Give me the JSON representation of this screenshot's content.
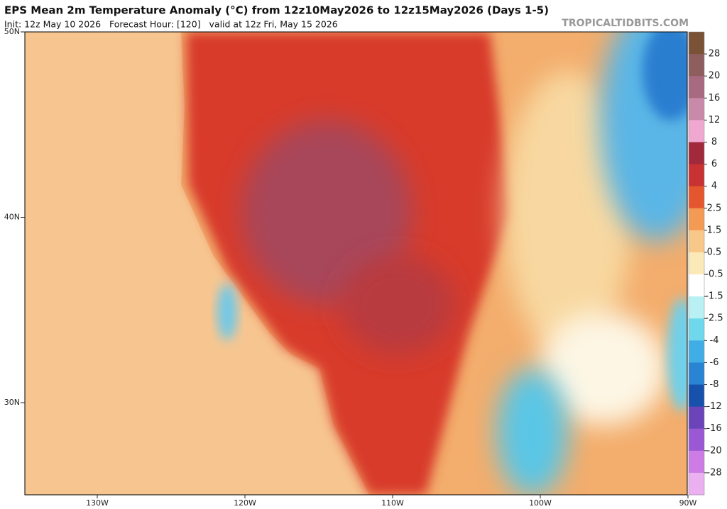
{
  "header": {
    "title": "EPS Mean 2m Temperature Anomaly (°C) from 12z10May2026 to 12z15May2026 (Days 1-5)",
    "subtitle": "Init: 12z May 10 2026   Forecast Hour: [120]   valid at 12z Fri, May 15 2026",
    "watermark": "TROPICALTIDBITS.COM"
  },
  "map": {
    "lat_labels": [
      "50N",
      "40N",
      "30N"
    ],
    "lon_labels": [
      "130W",
      "120W",
      "110W",
      "100W",
      "90W"
    ]
  },
  "colorbar": {
    "colors": [
      "#7a5236",
      "#8e5e5e",
      "#a86a80",
      "#c88aa8",
      "#f0a8d0",
      "#a02a3c",
      "#c83232",
      "#e4572e",
      "#f39a55",
      "#f8c888",
      "#fbeab8",
      "#ffffff",
      "#b8f0f4",
      "#70d8ec",
      "#40aee4",
      "#2a84d4",
      "#1652ac",
      "#6a44b8",
      "#9a58d4",
      "#cc7ce4",
      "#eab0f0"
    ],
    "labels": [
      "28",
      "20",
      "16",
      "12",
      "8",
      "6",
      "4",
      "2.5",
      "1.5",
      "0.5",
      "-0.5",
      "-1.5",
      "-2.5",
      "-4",
      "-6",
      "-8",
      "-12",
      "-16",
      "-20",
      "-28"
    ]
  }
}
